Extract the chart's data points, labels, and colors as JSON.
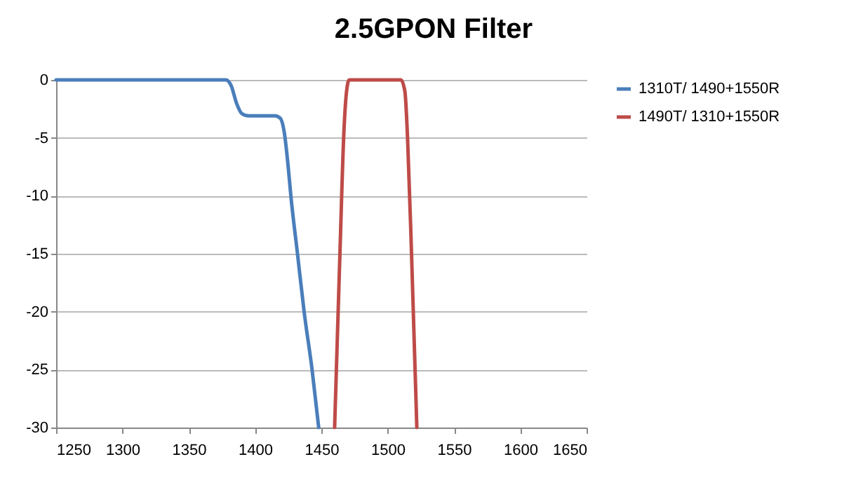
{
  "chart_data": {
    "type": "line",
    "title": "2.5GPON Filter",
    "xlim": [
      1250,
      1650
    ],
    "xticks": [
      1250,
      1300,
      1350,
      1400,
      1450,
      1500,
      1550,
      1600,
      1650
    ],
    "ylim": [
      -30,
      0
    ],
    "yticks": [
      -30,
      -25,
      -20,
      -15,
      -10,
      -5,
      0
    ],
    "grid": "y",
    "legend": "right",
    "marker": "none",
    "line_style": "solid",
    "series": [
      {
        "name": "1310T/ 1490+1550R",
        "color": "#4a7ebb",
        "x": [
          1250,
          1300,
          1350,
          1378,
          1382,
          1386,
          1390,
          1395,
          1405,
          1415,
          1419,
          1422,
          1425,
          1427,
          1432,
          1437,
          1443,
          1448
        ],
        "values": [
          0,
          0,
          0,
          0,
          -0.5,
          -2,
          -2.9,
          -3.1,
          -3.1,
          -3.1,
          -3.3,
          -4.5,
          -7.5,
          -10,
          -15,
          -20,
          -25,
          -30
        ]
      },
      {
        "name": "1490T/ 1310+1550R",
        "color": "#be4b48",
        "x": [
          1460,
          1464,
          1467,
          1469,
          1471,
          1480,
          1500,
          1510,
          1513,
          1515,
          1518,
          1522
        ],
        "values": [
          -30,
          -15,
          -4.5,
          -1,
          0,
          0,
          0,
          0,
          -1,
          -5,
          -15,
          -30
        ]
      }
    ]
  }
}
